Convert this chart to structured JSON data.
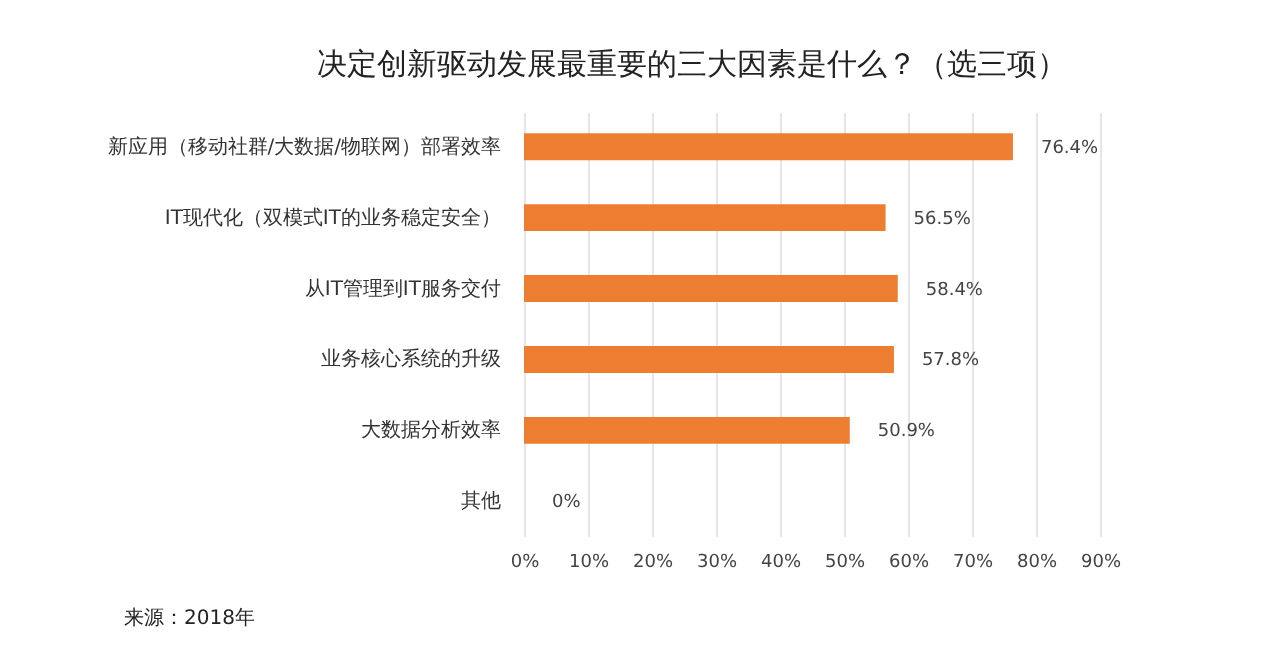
{
  "chart_data": {
    "type": "bar",
    "orientation": "horizontal",
    "title": "决定创新驱动发展最重要的三大因素是什么？（选三项）",
    "categories": [
      "新应用（移动社群/大数据/物联网）部署效率",
      "IT现代化（双模式IT的业务稳定安全）",
      "从IT管理到IT服务交付",
      "业务核心系统的升级",
      "大数据分析效率",
      "其他"
    ],
    "values": [
      76.4,
      56.5,
      58.4,
      57.8,
      50.9,
      0
    ],
    "value_labels": [
      "76.4%",
      "56.5%",
      "58.4%",
      "57.8%",
      "50.9%",
      "0%"
    ],
    "color": "#ed7d31",
    "xlim": [
      0,
      90
    ],
    "xticks": [
      {
        "value": 0,
        "label": "0%"
      },
      {
        "value": 10,
        "label": "10%"
      },
      {
        "value": 20,
        "label": "20%"
      },
      {
        "value": 30,
        "label": "30%"
      },
      {
        "value": 40,
        "label": "40%"
      },
      {
        "value": 50,
        "label": "50%"
      },
      {
        "value": 60,
        "label": "60%"
      },
      {
        "value": 70,
        "label": "70%"
      },
      {
        "value": 80,
        "label": "80%"
      },
      {
        "value": 90,
        "label": "90%"
      }
    ],
    "grid": "x",
    "annotations": [
      "来源：2018年"
    ]
  }
}
